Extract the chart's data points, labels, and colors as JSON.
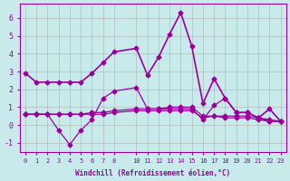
{
  "xlabel": "Windchill (Refroidissement éolien,°C)",
  "background_color": "#c8eaea",
  "grid_color": "#aaaaaa",
  "line_color": "#990099",
  "ylim": [
    -1.5,
    6.8
  ],
  "xlim": [
    -0.5,
    23.5
  ],
  "xticks": [
    0,
    1,
    2,
    3,
    4,
    5,
    6,
    7,
    8,
    10,
    11,
    12,
    13,
    14,
    15,
    16,
    17,
    18,
    19,
    20,
    21,
    22,
    23
  ],
  "yticks": [
    -1,
    0,
    1,
    2,
    3,
    4,
    5,
    6
  ],
  "series": [
    {
      "x": [
        0,
        1,
        2,
        3,
        4,
        5,
        6,
        7,
        8,
        10,
        11,
        12,
        13,
        14,
        15,
        16,
        17,
        18,
        19,
        20,
        21,
        22,
        23
      ],
      "y": [
        2.9,
        2.4,
        2.4,
        2.4,
        2.4,
        2.4,
        2.9,
        3.5,
        4.1,
        4.3,
        2.8,
        3.8,
        5.1,
        6.3,
        4.4,
        1.2,
        2.6,
        1.5,
        0.7,
        0.7,
        0.4,
        0.9,
        0.2
      ]
    },
    {
      "x": [
        0,
        1,
        2,
        3,
        4,
        5,
        6,
        7,
        8,
        10,
        11,
        12,
        13,
        14,
        15,
        16,
        17,
        18,
        19,
        20,
        21,
        22,
        23
      ],
      "y": [
        0.6,
        0.6,
        0.6,
        -0.3,
        -1.1,
        -0.3,
        0.3,
        1.5,
        1.9,
        2.1,
        0.9,
        0.9,
        0.9,
        0.9,
        0.9,
        0.3,
        1.1,
        1.5,
        0.7,
        0.7,
        0.4,
        0.2,
        0.2
      ]
    },
    {
      "x": [
        0,
        1,
        2,
        3,
        4,
        5,
        6,
        7,
        8,
        10,
        11,
        12,
        13,
        14,
        15,
        16,
        17,
        18,
        19,
        20,
        21,
        22,
        23
      ],
      "y": [
        0.6,
        0.6,
        0.6,
        0.6,
        0.6,
        0.6,
        0.7,
        0.7,
        0.8,
        0.9,
        0.9,
        0.9,
        1.0,
        1.0,
        1.0,
        0.5,
        0.5,
        0.5,
        0.5,
        0.5,
        0.4,
        0.3,
        0.2
      ]
    },
    {
      "x": [
        0,
        1,
        2,
        3,
        4,
        5,
        6,
        7,
        8,
        10,
        11,
        12,
        13,
        14,
        15,
        16,
        17,
        18,
        19,
        20,
        21,
        22,
        23
      ],
      "y": [
        0.6,
        0.6,
        0.6,
        0.6,
        0.6,
        0.6,
        0.6,
        0.6,
        0.7,
        0.8,
        0.8,
        0.8,
        0.8,
        0.8,
        0.8,
        0.4,
        0.5,
        0.4,
        0.4,
        0.4,
        0.3,
        0.2,
        0.2
      ]
    }
  ]
}
